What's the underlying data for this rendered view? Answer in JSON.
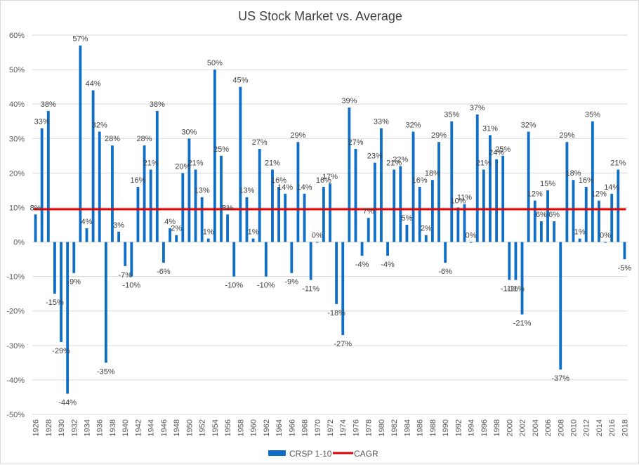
{
  "chart_data": {
    "type": "bar",
    "title": "US Stock Market vs. Average",
    "xlabel": "",
    "ylabel": "",
    "ylim": [
      -50,
      60
    ],
    "yticks": [
      -50,
      -40,
      -30,
      -20,
      -10,
      0,
      10,
      20,
      30,
      40,
      50,
      60
    ],
    "ytick_format": "percent",
    "grid": true,
    "legend_position": "bottom",
    "colors": {
      "bars": "#0f6fc6",
      "cagr": "#e00000",
      "grid": "#d9d9d9"
    },
    "x": [
      1926,
      1927,
      1928,
      1929,
      1930,
      1931,
      1932,
      1933,
      1934,
      1935,
      1936,
      1937,
      1938,
      1939,
      1940,
      1941,
      1942,
      1943,
      1944,
      1945,
      1946,
      1947,
      1948,
      1949,
      1950,
      1951,
      1952,
      1953,
      1954,
      1955,
      1956,
      1957,
      1958,
      1959,
      1960,
      1961,
      1962,
      1963,
      1964,
      1965,
      1966,
      1967,
      1968,
      1969,
      1970,
      1971,
      1972,
      1973,
      1974,
      1975,
      1976,
      1977,
      1978,
      1979,
      1980,
      1981,
      1982,
      1983,
      1984,
      1985,
      1986,
      1987,
      1988,
      1989,
      1990,
      1991,
      1992,
      1993,
      1994,
      1995,
      1996,
      1997,
      1998,
      1999,
      2000,
      2001,
      2002,
      2003,
      2004,
      2005,
      2006,
      2007,
      2008,
      2009,
      2010,
      2011,
      2012,
      2013,
      2014,
      2015,
      2016,
      2017,
      2018
    ],
    "xtick_labels": [
      "1926",
      "1928",
      "1930",
      "1932",
      "1934",
      "1936",
      "1938",
      "1940",
      "1942",
      "1944",
      "1946",
      "1948",
      "1950",
      "1952",
      "1954",
      "1956",
      "1958",
      "1960",
      "1962",
      "1964",
      "1966",
      "1968",
      "1970",
      "1972",
      "1974",
      "1976",
      "1978",
      "1980",
      "1982",
      "1984",
      "1986",
      "1988",
      "1990",
      "1992",
      "1994",
      "1996",
      "1998",
      "2000",
      "2002",
      "2004",
      "2006",
      "2008",
      "2010",
      "2012",
      "2014",
      "2016",
      "2018"
    ],
    "series": [
      {
        "name": "CRSP 1-10",
        "type": "bar",
        "values": [
          8,
          33,
          38,
          -15,
          -29,
          -44,
          -9,
          57,
          4,
          44,
          32,
          -35,
          28,
          3,
          -7,
          -10,
          16,
          28,
          21,
          38,
          -6,
          4,
          2,
          20,
          30,
          21,
          13,
          1,
          50,
          25,
          8,
          -10,
          45,
          13,
          1,
          27,
          -10,
          21,
          16,
          14,
          -9,
          29,
          14,
          -11,
          0,
          16,
          17,
          -18,
          -27,
          39,
          27,
          -4,
          7,
          23,
          33,
          -4,
          21,
          22,
          5,
          32,
          16,
          2,
          18,
          29,
          -6,
          35,
          10,
          11,
          0,
          37,
          21,
          31,
          24,
          25,
          -11,
          -11,
          -21,
          32,
          12,
          6,
          15,
          6,
          -37,
          29,
          18,
          1,
          16,
          35,
          12,
          0,
          14,
          21,
          -5
        ],
        "labels": [
          "8%",
          "33%",
          "38%",
          "-15%",
          "-29%",
          "-44%",
          "-9%",
          "57%",
          "4%",
          "44%",
          "32%",
          "-35%",
          "28%",
          "3%",
          "-7%",
          "-10%",
          "16%",
          "28%",
          "21%",
          "38%",
          "-6%",
          "4%",
          "2%",
          "20%",
          "30%",
          "21%",
          "13%",
          "1%",
          "50%",
          "25%",
          "8%",
          "-10%",
          "45%",
          "13%",
          "1%",
          "27%",
          "-10%",
          "21%",
          "16%",
          "14%",
          "-9%",
          "29%",
          "14%",
          "-11%",
          "0%",
          "16%",
          "17%",
          "-18%",
          "-27%",
          "39%",
          "27%",
          "-4%",
          "7%",
          "23%",
          "33%",
          "-4%",
          "21%",
          "22%",
          "5%",
          "32%",
          "16%",
          "2%",
          "18%",
          "29%",
          "-6%",
          "35%",
          "10%",
          "11%",
          "0%",
          "37%",
          "21%",
          "31%",
          "24%",
          "25%",
          "-11%",
          "-11%",
          "-21%",
          "32%",
          "12%",
          "6%",
          "15%",
          "6%",
          "-37%",
          "29%",
          "18%",
          "1%",
          "16%",
          "35%",
          "12%",
          "0%",
          "14%",
          "21%",
          "-5%"
        ]
      },
      {
        "name": "CAGR",
        "type": "line",
        "value": 9.5
      }
    ]
  }
}
